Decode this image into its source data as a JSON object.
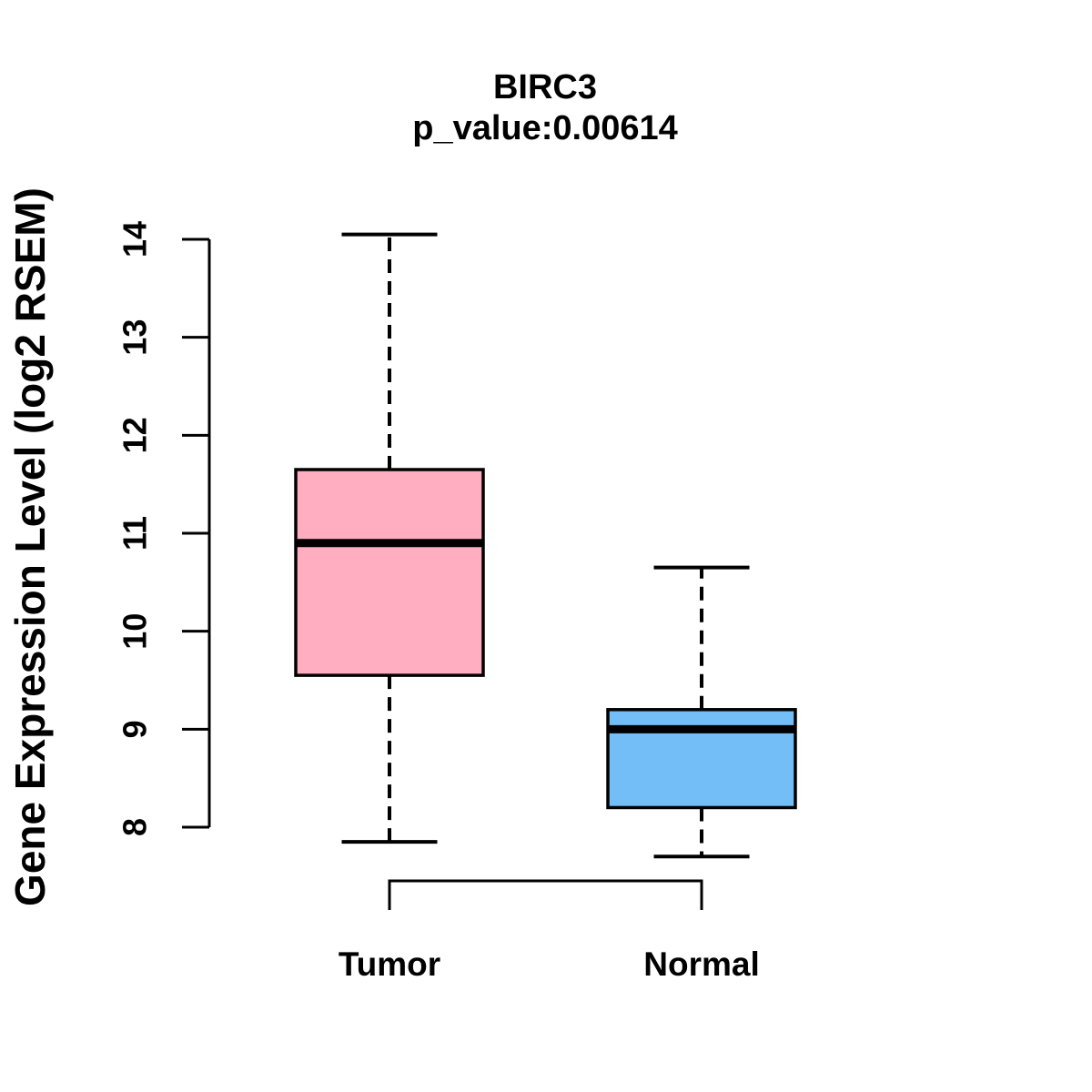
{
  "chart_data": {
    "type": "boxplot",
    "title": "BIRC3",
    "subtitle": "p_value:0.00614",
    "ylabel": "Gene Expression Level (log2 RSEM)",
    "xlabel": "",
    "ylim": [
      8,
      14
    ],
    "yticks": [
      8,
      9,
      10,
      11,
      12,
      13,
      14
    ],
    "grid": false,
    "legend": "none",
    "groups": [
      {
        "label": "Tumor",
        "box_color": "#ffaec2",
        "whisker_low": 7.85,
        "q1": 9.55,
        "median": 10.9,
        "q3": 11.65,
        "whisker_high": 14.05
      },
      {
        "label": "Normal",
        "box_color": "#74bef8",
        "whisker_low": 7.7,
        "q1": 8.2,
        "median": 9.0,
        "q3": 9.2,
        "whisker_high": 10.65
      }
    ],
    "comparison_bracket": {
      "from": "Tumor",
      "to": "Normal"
    },
    "line_color": "#000000",
    "background": "#ffffff"
  }
}
